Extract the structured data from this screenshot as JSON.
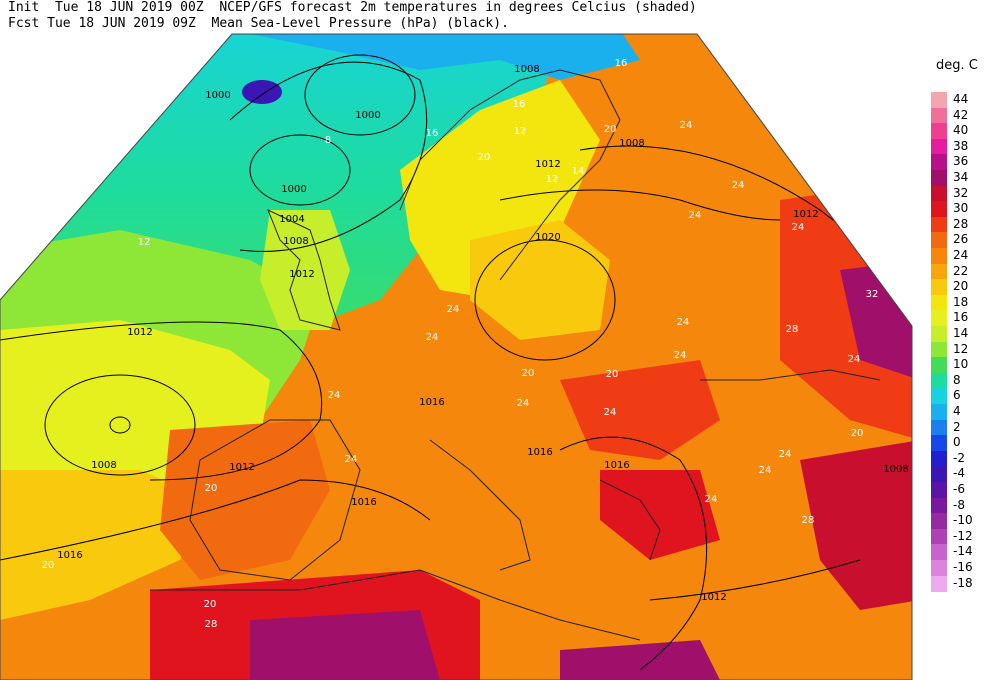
{
  "header": {
    "line1": "Init  Tue 18 JUN 2019 00Z  NCEP/GFS forecast 2m temperatures in degrees Celcius (shaded)",
    "line2": "Fcst Tue 18 JUN 2019 09Z  Mean Sea-Level Pressure (hPa) (black)."
  },
  "colorbar": {
    "units": "deg. C",
    "entries": [
      {
        "label": "44",
        "color": "#f4a6b0"
      },
      {
        "label": "42",
        "color": "#f26f9a"
      },
      {
        "label": "40",
        "color": "#ef3f8e"
      },
      {
        "label": "38",
        "color": "#e51ea0"
      },
      {
        "label": "36",
        "color": "#b8108a"
      },
      {
        "label": "34",
        "color": "#a0106a"
      },
      {
        "label": "32",
        "color": "#c8102e"
      },
      {
        "label": "30",
        "color": "#e0141e"
      },
      {
        "label": "28",
        "color": "#ef3c14"
      },
      {
        "label": "26",
        "color": "#f26a0f"
      },
      {
        "label": "24",
        "color": "#f5870c"
      },
      {
        "label": "22",
        "color": "#f7a70c"
      },
      {
        "label": "20",
        "color": "#f8c90c"
      },
      {
        "label": "18",
        "color": "#f3e60f"
      },
      {
        "label": "16",
        "color": "#e6f01e"
      },
      {
        "label": "14",
        "color": "#c6ee2a"
      },
      {
        "label": "12",
        "color": "#8ee637"
      },
      {
        "label": "10",
        "color": "#42dc5a"
      },
      {
        "label": "8",
        "color": "#1edc9e"
      },
      {
        "label": "6",
        "color": "#17d2e0"
      },
      {
        "label": "4",
        "color": "#1ab0ee"
      },
      {
        "label": "2",
        "color": "#1b80ee"
      },
      {
        "label": "0",
        "color": "#1746ea"
      },
      {
        "label": "-2",
        "color": "#2020cc"
      },
      {
        "label": "-4",
        "color": "#3a16b4"
      },
      {
        "label": "-6",
        "color": "#5a14a6"
      },
      {
        "label": "-8",
        "color": "#7a189e"
      },
      {
        "label": "-10",
        "color": "#962a9e"
      },
      {
        "label": "-12",
        "color": "#b040b6"
      },
      {
        "label": "-14",
        "color": "#c862cc"
      },
      {
        "label": "-16",
        "color": "#dc84dc"
      },
      {
        "label": "-18",
        "color": "#eeaaee"
      }
    ]
  },
  "isobar_labels": [
    "1008",
    "1000",
    "1000",
    "1000",
    "1004",
    "1008",
    "1012",
    "1012",
    "1008",
    "1012",
    "1008",
    "1012",
    "1020",
    "1016",
    "1012",
    "1016",
    "1016",
    "1016",
    "1016",
    "1012",
    "1008"
  ],
  "temp_labels": [
    "8",
    "12",
    "16",
    "20",
    "20",
    "24",
    "24",
    "24",
    "24",
    "24",
    "24",
    "24",
    "24",
    "24",
    "28",
    "32",
    "24",
    "20",
    "20",
    "20",
    "24",
    "24",
    "24",
    "24",
    "24",
    "28",
    "28",
    "20",
    "20",
    "24",
    "20",
    "16",
    "12",
    "12",
    "16",
    "14"
  ]
}
